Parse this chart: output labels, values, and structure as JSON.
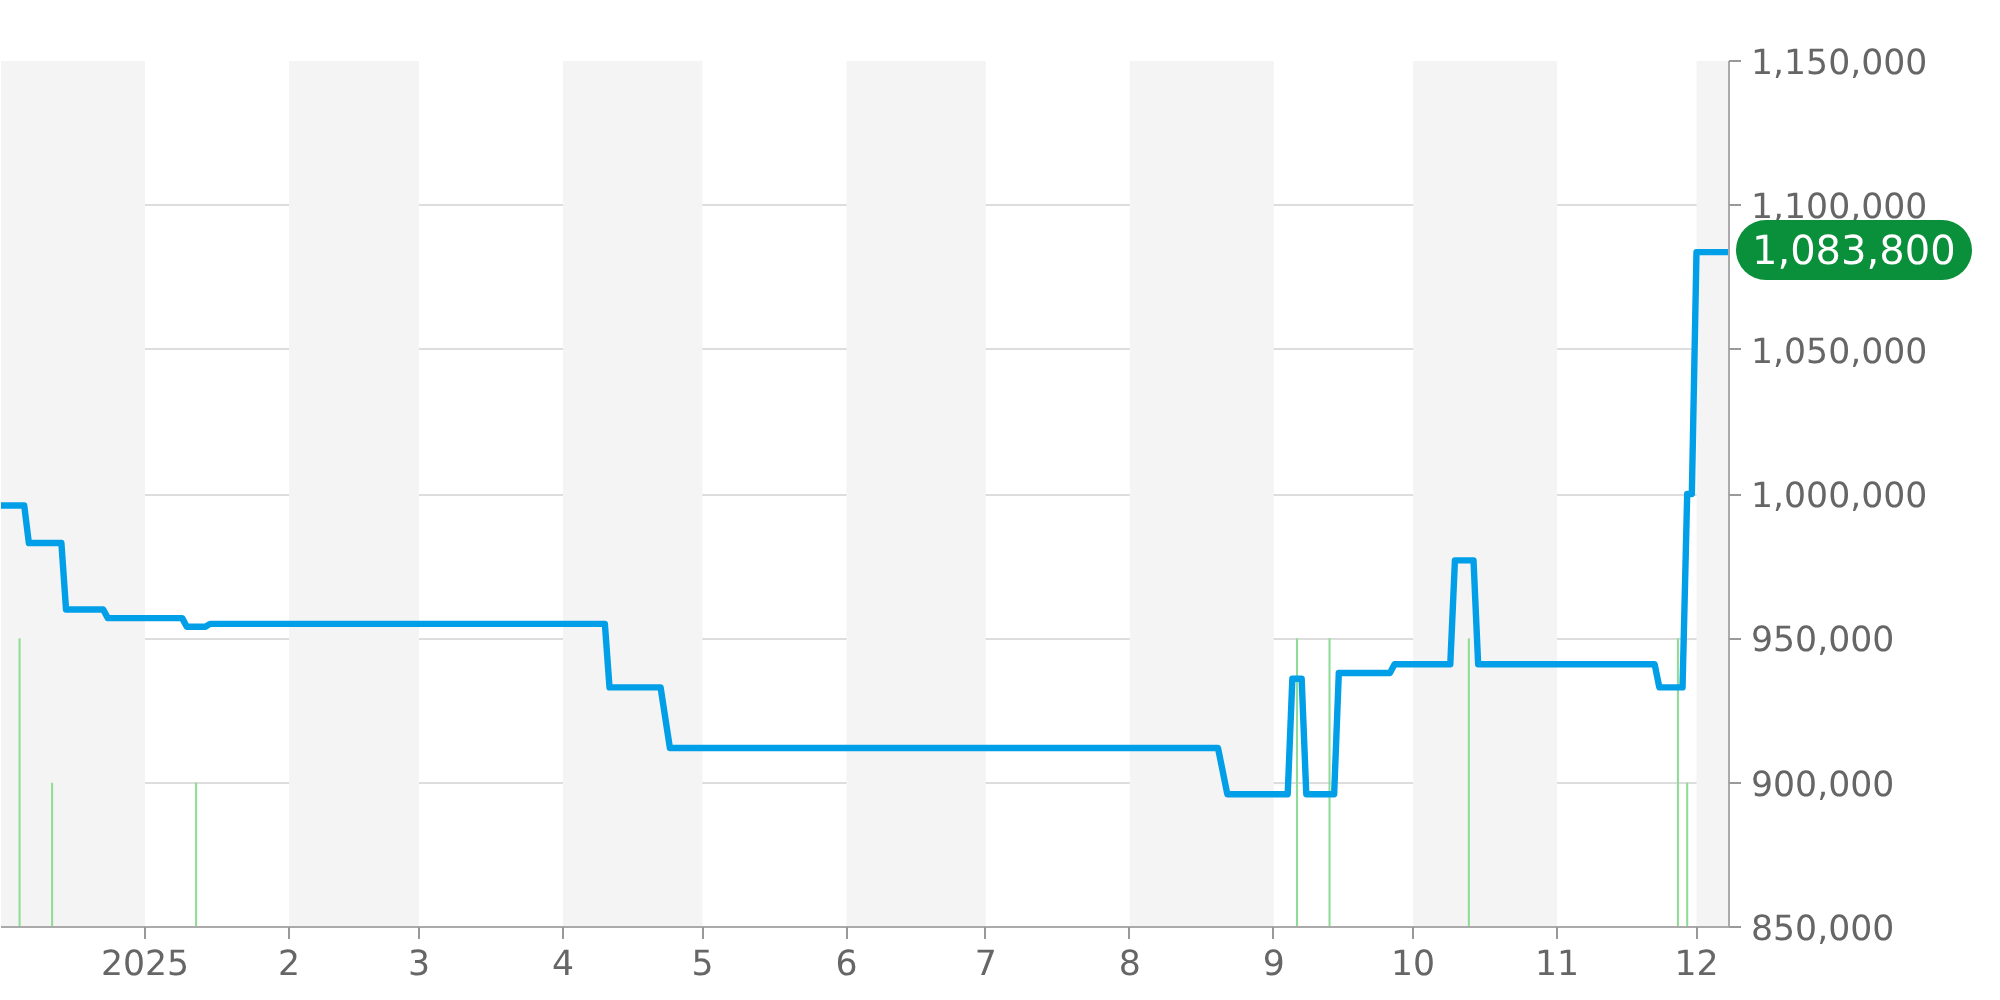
{
  "chart_data": {
    "type": "line",
    "xlim": [
      "2024-12-01",
      "2025-12-08"
    ],
    "ylim": [
      850000,
      1150000
    ],
    "xticks": [
      {
        "value": "2025-01-01",
        "label": "2025"
      },
      {
        "value": "2025-02-01",
        "label": "2"
      },
      {
        "value": "2025-03-01",
        "label": "3"
      },
      {
        "value": "2025-04-01",
        "label": "4"
      },
      {
        "value": "2025-05-01",
        "label": "5"
      },
      {
        "value": "2025-06-01",
        "label": "6"
      },
      {
        "value": "2025-07-01",
        "label": "7"
      },
      {
        "value": "2025-08-01",
        "label": "8"
      },
      {
        "value": "2025-09-01",
        "label": "9"
      },
      {
        "value": "2025-10-01",
        "label": "10"
      },
      {
        "value": "2025-11-01",
        "label": "11"
      },
      {
        "value": "2025-12-01",
        "label": "12"
      }
    ],
    "yticks": [
      {
        "value": 850000,
        "label": "850,000"
      },
      {
        "value": 900000,
        "label": "900,000"
      },
      {
        "value": 950000,
        "label": "950,000"
      },
      {
        "value": 1000000,
        "label": "1,000,000"
      },
      {
        "value": 1050000,
        "label": "1,050,000"
      },
      {
        "value": 1100000,
        "label": "1,100,000"
      },
      {
        "value": 1150000,
        "label": "1,150,000"
      }
    ],
    "grid": "y",
    "marker": "none",
    "series": [
      {
        "type": "bar",
        "color": "#8fdc98",
        "x": [
          "2024-12-05",
          "2024-12-12",
          "2025-01-12",
          "2025-09-06",
          "2025-09-13",
          "2025-10-13",
          "2025-11-27",
          "2025-11-29"
        ],
        "values": [
          950000,
          900000,
          900000,
          950000,
          950000,
          950000,
          950000,
          900000
        ]
      },
      {
        "type": "line",
        "color": "#009fe8",
        "x": [
          "2024-12-01",
          "2024-12-06",
          "2024-12-07",
          "2024-12-14",
          "2024-12-15",
          "2024-12-23",
          "2024-12-24",
          "2025-01-09",
          "2025-01-10",
          "2025-01-14",
          "2025-01-15",
          "2025-04-10",
          "2025-04-11",
          "2025-04-22",
          "2025-04-24",
          "2025-08-20",
          "2025-08-22",
          "2025-09-04",
          "2025-09-05",
          "2025-09-07",
          "2025-09-08",
          "2025-09-14",
          "2025-09-15",
          "2025-09-26",
          "2025-09-27",
          "2025-10-09",
          "2025-10-10",
          "2025-10-14",
          "2025-10-15",
          "2025-11-22",
          "2025-11-23",
          "2025-11-28",
          "2025-11-29",
          "2025-11-30",
          "2025-12-01",
          "2025-12-08"
        ],
        "values": [
          996000,
          996000,
          983000,
          983000,
          960000,
          960000,
          957000,
          957000,
          954000,
          954000,
          955000,
          955000,
          933000,
          933000,
          912000,
          912000,
          896000,
          896000,
          936000,
          936000,
          896000,
          896000,
          938000,
          938000,
          941000,
          941000,
          977000,
          977000,
          941000,
          941000,
          933000,
          933000,
          1000000,
          1000000,
          1083800,
          1083800
        ]
      }
    ],
    "bands": [
      {
        "axis": "x",
        "from": "2024-12-01",
        "to": "2025-01-01",
        "color": "#f4f4f4"
      },
      {
        "axis": "x",
        "from": "2025-02-01",
        "to": "2025-03-01",
        "color": "#f4f4f4"
      },
      {
        "axis": "x",
        "from": "2025-04-01",
        "to": "2025-05-01",
        "color": "#f4f4f4"
      },
      {
        "axis": "x",
        "from": "2025-06-01",
        "to": "2025-07-01",
        "color": "#f4f4f4"
      },
      {
        "axis": "x",
        "from": "2025-08-01",
        "to": "2025-09-01",
        "color": "#f4f4f4"
      },
      {
        "axis": "x",
        "from": "2025-10-01",
        "to": "2025-11-01",
        "color": "#f4f4f4"
      },
      {
        "axis": "x",
        "from": "2025-12-01",
        "to": "2025-12-08",
        "color": "#f4f4f4"
      }
    ],
    "annotations": [
      {
        "text": "1,083,800",
        "x": "2025-12-08",
        "y": 1083800
      }
    ]
  }
}
